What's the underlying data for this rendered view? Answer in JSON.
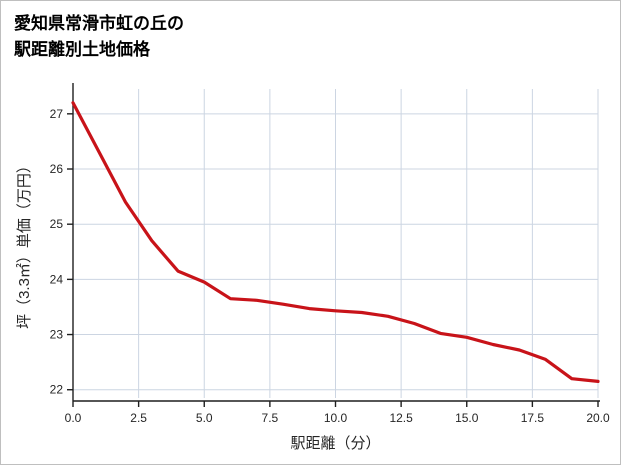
{
  "title": {
    "line1": "愛知県常滑市虹の丘の",
    "line2": "駅距離別土地価格"
  },
  "chart_data": {
    "type": "line",
    "title": "愛知県常滑市虹の丘の駅距離別土地価格",
    "xlabel": "駅距離（分）",
    "ylabel": "坪（3.3㎡）単価（万円）",
    "x": [
      0,
      1,
      2,
      3,
      4,
      5,
      6,
      7,
      8,
      9,
      10,
      11,
      12,
      13,
      14,
      15,
      16,
      17,
      18,
      19,
      20
    ],
    "y": [
      27.2,
      26.3,
      25.4,
      24.7,
      24.15,
      23.95,
      23.65,
      23.62,
      23.55,
      23.47,
      23.43,
      23.4,
      23.33,
      23.2,
      23.02,
      22.95,
      22.82,
      22.72,
      22.55,
      22.2,
      22.15
    ],
    "xlim": [
      0,
      20
    ],
    "ylim": [
      21.85,
      27.45
    ],
    "xticks": [
      0,
      2.5,
      5,
      7.5,
      10,
      12.5,
      15,
      17.5,
      20
    ],
    "xtick_labels": [
      "0.0",
      "2.5",
      "5.0",
      "7.5",
      "10.0",
      "12.5",
      "15.0",
      "17.5",
      "20.0"
    ],
    "yticks": [
      22,
      23,
      24,
      25,
      26,
      27
    ],
    "ytick_labels": [
      "22",
      "23",
      "24",
      "25",
      "26",
      "27"
    ],
    "grid": true,
    "legend": "none",
    "line_color": "#c81319",
    "grid_color": "#ccd5e2",
    "axis_color": "#1f1f1f",
    "label_color": "#262626"
  }
}
